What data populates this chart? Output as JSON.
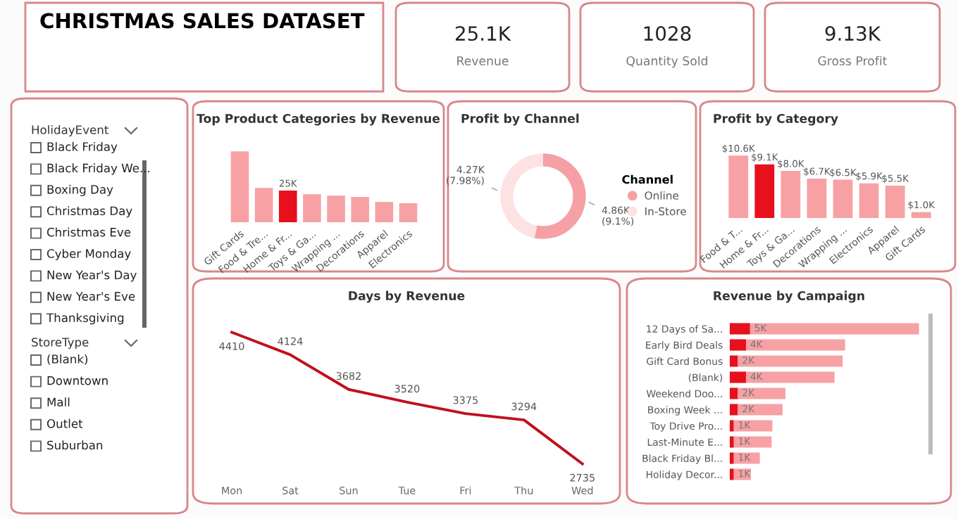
{
  "chart_data": [
    {
      "type": "other",
      "title": "CHRISTMAS SALES DATASET"
    },
    {
      "type": "other",
      "title": "25.1K",
      "subtitle": "Revenue"
    },
    {
      "type": "other",
      "title": "1028",
      "subtitle": "Quantity Sold"
    },
    {
      "type": "other",
      "title": "9.13K",
      "subtitle": "Gross Profit"
    },
    {
      "type": "other",
      "title": "HolidayEvent",
      "annotations": [
        "Black Friday",
        "Black Friday We...",
        "Boxing Day",
        "Christmas Day",
        "Christmas Eve",
        "Cyber Monday",
        "New Year's Day",
        "New Year's Eve",
        "Thanksgiving"
      ]
    },
    {
      "type": "other",
      "title": "StoreType",
      "annotations": [
        "(Blank)",
        "Downtown",
        "Mall",
        "Outlet",
        "Suburban"
      ]
    },
    {
      "type": "bar",
      "title": "Top Product Categories by Revenue",
      "tick_labels": "x",
      "categories": [
        "Gift Cards",
        "Food & Tre...",
        "Home & Fr...",
        "Toys & Ga...",
        "Wrapping ...",
        "Decorations",
        "Apparel",
        "Electronics"
      ],
      "values": [
        56,
        27,
        25,
        22,
        21,
        20,
        16,
        15
      ],
      "colors": [
        "#f7a1a4",
        "#f7a1a4",
        "#e8101c",
        "#f7a1a4",
        "#f7a1a4",
        "#f7a1a4",
        "#f7a1a4",
        "#f7a1a4"
      ],
      "value_labels": [
        null,
        null,
        "25K",
        null,
        null,
        null,
        null,
        null
      ]
    },
    {
      "type": "donut",
      "title": "Profit by Channel",
      "legend_title": "Channel",
      "legend": "right",
      "categories": [
        "Online",
        "In-Store"
      ],
      "values": [
        4860,
        4270
      ],
      "colors": [
        "#f5a0a4",
        "#fde2e3"
      ],
      "value_labels": [
        "4.86K\n(9.1%)",
        "4.27K\n(7.98%)"
      ]
    },
    {
      "type": "bar",
      "title": "Profit by Category",
      "tick_labels": "x",
      "categories": [
        "Food & T...",
        "Home & Fr...",
        "Toys & Ga...",
        "Decorations",
        "Wrapping ...",
        "Electronics",
        "Apparel",
        "Gift Cards"
      ],
      "values": [
        10.6,
        9.1,
        8.0,
        6.7,
        6.5,
        5.9,
        5.5,
        1.0
      ],
      "colors": [
        "#f7a1a4",
        "#e8101c",
        "#f7a1a4",
        "#f7a1a4",
        "#f7a1a4",
        "#f7a1a4",
        "#f7a1a4",
        "#f7a1a4"
      ],
      "value_labels": [
        "$10.6K",
        "$9.1K",
        "$8.0K",
        "$6.7K",
        "$6.5K",
        "$5.9K",
        "$5.5K",
        "$1.0K"
      ]
    },
    {
      "type": "line",
      "title": "Days by Revenue",
      "tick_labels": "x",
      "data_labels": true,
      "marker": "none",
      "line_style": "solid",
      "categories": [
        "Mon",
        "Sat",
        "Sun",
        "Tue",
        "Fri",
        "Thu",
        "Wed"
      ],
      "series": [
        {
          "color": "#c0101c",
          "values": [
            4410,
            4124,
            3682,
            3520,
            3375,
            3294,
            2735
          ]
        }
      ]
    },
    {
      "type": "bar",
      "title": "Revenue by Campaign",
      "orientation": "horizontal",
      "stacked": true,
      "tick_labels": "y",
      "categories": [
        "12 Days of Sa...",
        "Early Bird Deals",
        "Gift Card Bonus",
        "(Blank)",
        "Weekend Doo...",
        "Boxing Week ...",
        "Toy Drive Pro...",
        "Last-Minute E...",
        "Black Friday Bl...",
        "Holiday Decor..."
      ],
      "series": [
        {
          "color": "#e8101c",
          "values": [
            5,
            4,
            2,
            4,
            2,
            2,
            1,
            1,
            1,
            1
          ],
          "value_labels": [
            "5K",
            "4K",
            "2K",
            "4K",
            "2K",
            "2K",
            "1K",
            "1K",
            "1K",
            "1K"
          ]
        },
        {
          "color": "#f7a1a4",
          "values": [
            41.6,
            24.4,
            25.8,
            21.8,
            11.7,
            11.0,
            9.5,
            9.3,
            6.4,
            4.2
          ]
        }
      ]
    }
  ]
}
